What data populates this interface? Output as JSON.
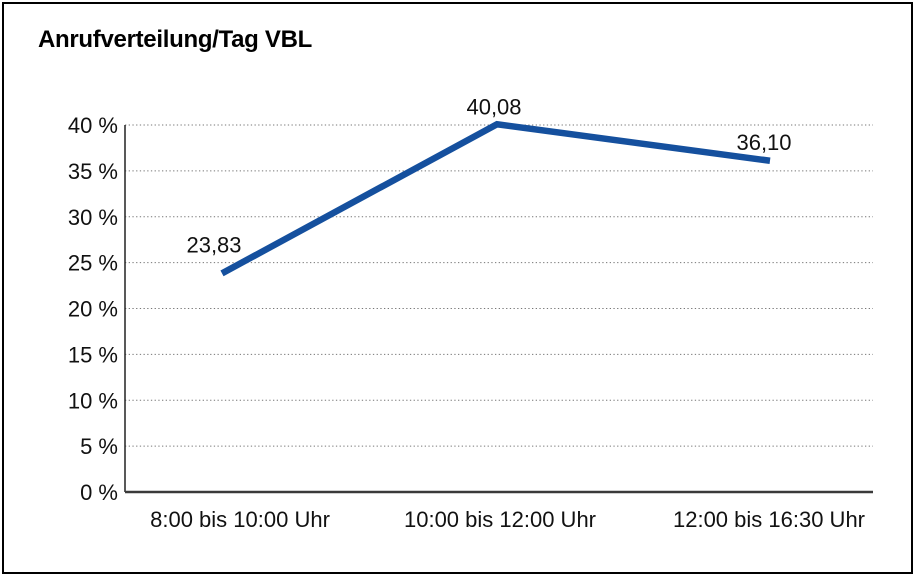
{
  "chart_data": {
    "type": "line",
    "title": "Anrufverteilung/Tag VBL",
    "categories": [
      "8:00 bis 10:00 Uhr",
      "10:00 bis 12:00 Uhr",
      "12:00 bis 16:30 Uhr"
    ],
    "values": [
      23.83,
      40.08,
      36.1
    ],
    "point_labels": [
      "23,83",
      "40,08",
      "36,10"
    ],
    "y_ticks": [
      0,
      5,
      10,
      15,
      20,
      25,
      30,
      35,
      40
    ],
    "y_tick_labels": [
      "0 %",
      "5 %",
      "10 %",
      "15 %",
      "20 %",
      "25 %",
      "30 %",
      "35 %",
      "40 %"
    ],
    "ylim": [
      0,
      40
    ],
    "xlabel": "",
    "ylabel": "",
    "legend": "none",
    "grid": "horizontal dotted",
    "colors": {
      "line": "#15509E",
      "text": "#111111",
      "grid": "#777777",
      "axis": "#222222",
      "baseline": "#3A3A3A",
      "border": "#000000",
      "background": "#FFFFFF"
    }
  }
}
